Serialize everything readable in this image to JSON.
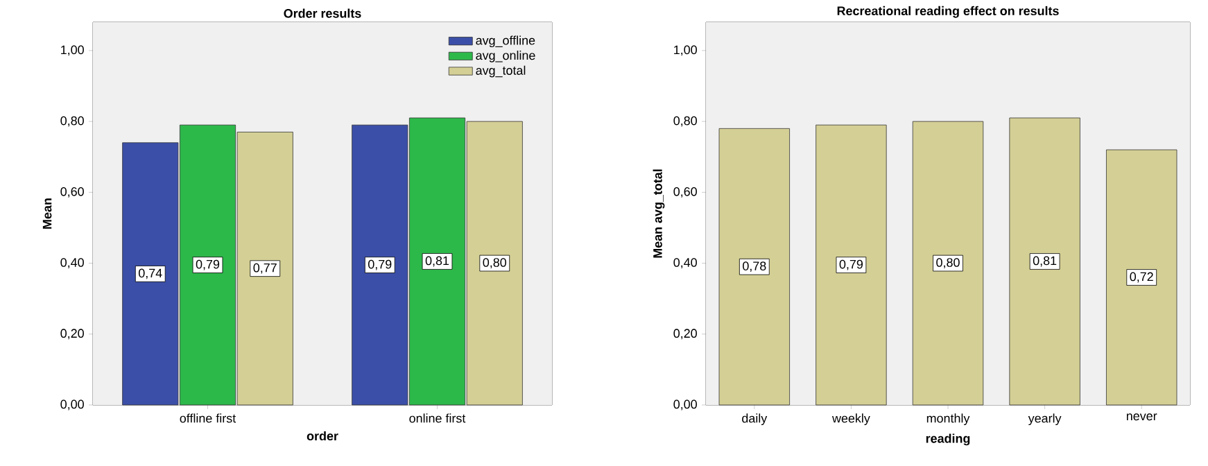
{
  "chart_data": [
    {
      "type": "bar",
      "title": "Order results",
      "xlabel": "order",
      "ylabel": "Mean",
      "categories": [
        "offline first",
        "online first"
      ],
      "series": [
        {
          "name": "avg_offline",
          "color": "#3b4fa8",
          "values": [
            0.74,
            0.79
          ],
          "value_labels": [
            "0,74",
            "0,79"
          ]
        },
        {
          "name": "avg_online",
          "color": "#2db84a",
          "values": [
            0.79,
            0.81
          ],
          "value_labels": [
            "0,79",
            "0,81"
          ]
        },
        {
          "name": "avg_total",
          "color": "#d4cf95",
          "values": [
            0.77,
            0.8
          ],
          "value_labels": [
            "0,77",
            "0,80"
          ]
        }
      ],
      "ylim": [
        0,
        1.08
      ],
      "yticks": [
        {
          "value": 0,
          "label": "0,00"
        },
        {
          "value": 0.2,
          "label": "0,20"
        },
        {
          "value": 0.4,
          "label": "0,40"
        },
        {
          "value": 0.6,
          "label": "0,60"
        },
        {
          "value": 0.8,
          "label": "0,80"
        },
        {
          "value": 1.0,
          "label": "1,00"
        }
      ],
      "legend": "top right"
    },
    {
      "type": "bar",
      "title": "Recreational reading effect on results",
      "xlabel": "reading",
      "ylabel": "Mean avg_total",
      "categories": [
        "daily",
        "weekly",
        "monthly",
        "yearly",
        "never"
      ],
      "series": [
        {
          "color": "#d4cf95",
          "values": [
            0.78,
            0.79,
            0.8,
            0.81,
            0.72
          ],
          "value_labels": [
            "0,78",
            "0,79",
            "0,80",
            "0,81",
            "0,72"
          ]
        }
      ],
      "ylim": [
        0,
        1.08
      ],
      "yticks": [
        {
          "value": 0,
          "label": "0,00"
        },
        {
          "value": 0.2,
          "label": "0,20"
        },
        {
          "value": 0.4,
          "label": "0,40"
        },
        {
          "value": 0.6,
          "label": "0,60"
        },
        {
          "value": 0.8,
          "label": "0,80"
        },
        {
          "value": 1.0,
          "label": "1,00"
        }
      ]
    }
  ]
}
